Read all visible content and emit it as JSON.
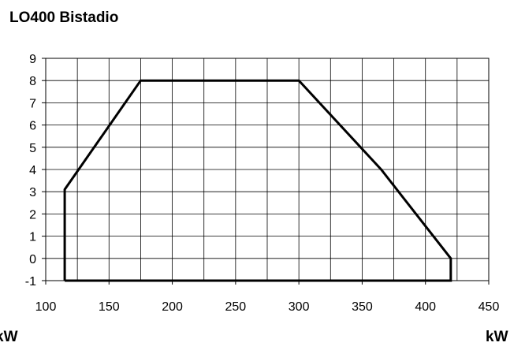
{
  "chart_data": {
    "type": "line",
    "title": "LO400 Bistadio",
    "xlabel": "",
    "ylabel": "",
    "unit_left": "kW",
    "unit_right": "kW",
    "xlim": [
      100,
      450
    ],
    "ylim": [
      -1,
      9
    ],
    "xticks": [
      100,
      150,
      200,
      250,
      300,
      350,
      400,
      450
    ],
    "yticks": [
      -1,
      0,
      1,
      2,
      3,
      4,
      5,
      6,
      7,
      8,
      9
    ],
    "grid": true,
    "x_grid_step": 25,
    "series": [
      {
        "x": [
          115,
          115,
          175,
          300,
          365,
          420,
          420,
          115
        ],
        "y": [
          -1,
          3.1,
          8,
          8,
          4,
          0,
          -1,
          -1
        ]
      }
    ]
  }
}
